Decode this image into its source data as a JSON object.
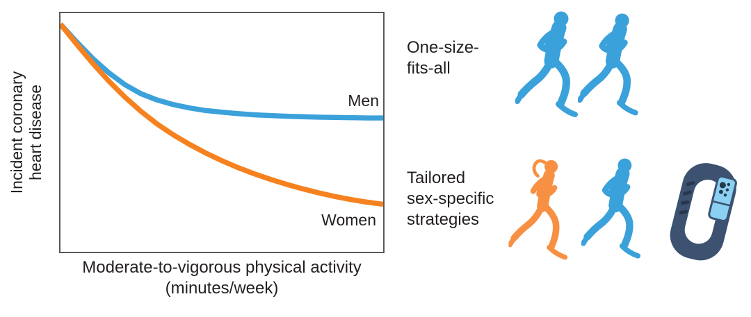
{
  "chart": {
    "y_axis_label_lines": [
      "Incident coronary",
      "heart disease"
    ],
    "x_axis_label_lines": [
      "Moderate-to-vigorous physical activity",
      "(minutes/week)"
    ]
  },
  "panels": {
    "one_size": {
      "lines": [
        "One-size-",
        "fits-all"
      ]
    },
    "tailored": {
      "lines": [
        "Tailored",
        "sex-specific",
        "strategies"
      ]
    }
  },
  "icons": {
    "one_size_row": [
      "male-runner-icon",
      "male-runner-icon"
    ],
    "tailored_row": [
      "female-runner-icon",
      "male-runner-icon",
      "fitness-tracker-icon"
    ]
  },
  "colors": {
    "men_line": "#3BA1DA",
    "women_line": "#F6821F",
    "runner_blue": "#3BA1DA",
    "runner_orange": "#F79042",
    "tracker_band": "#3C5270",
    "tracker_screen": "#8BD0F2",
    "text": "#231F20",
    "plot_border": "#58595B"
  },
  "chart_data": {
    "type": "line",
    "title": "",
    "xlabel": "Moderate-to-vigorous physical activity (minutes/week)",
    "ylabel": "Incident coronary heart disease",
    "x_axis": {
      "range_percent": [
        0,
        100
      ],
      "tick_labels": []
    },
    "y_axis": {
      "range_normalized": [
        0,
        1
      ],
      "tick_labels": []
    },
    "grid": false,
    "legend_position": "inline-right-of-lines",
    "x_percent": [
      0,
      5,
      10,
      15,
      20,
      25,
      30,
      35,
      40,
      45,
      50,
      55,
      60,
      65,
      70,
      75,
      80,
      85,
      90,
      95,
      100
    ],
    "series": [
      {
        "name": "Men",
        "color": "#3BA1DA",
        "values": [
          0.954,
          0.88,
          0.81,
          0.75,
          0.7,
          0.662,
          0.636,
          0.617,
          0.603,
          0.592,
          0.585,
          0.579,
          0.574,
          0.571,
          0.568,
          0.566,
          0.564,
          0.563,
          0.562,
          0.561,
          0.561
        ]
      },
      {
        "name": "Women",
        "color": "#F6821F",
        "values": [
          0.954,
          0.87,
          0.79,
          0.715,
          0.648,
          0.588,
          0.535,
          0.49,
          0.45,
          0.414,
          0.382,
          0.353,
          0.327,
          0.304,
          0.283,
          0.264,
          0.247,
          0.232,
          0.219,
          0.208,
          0.199
        ]
      }
    ]
  }
}
